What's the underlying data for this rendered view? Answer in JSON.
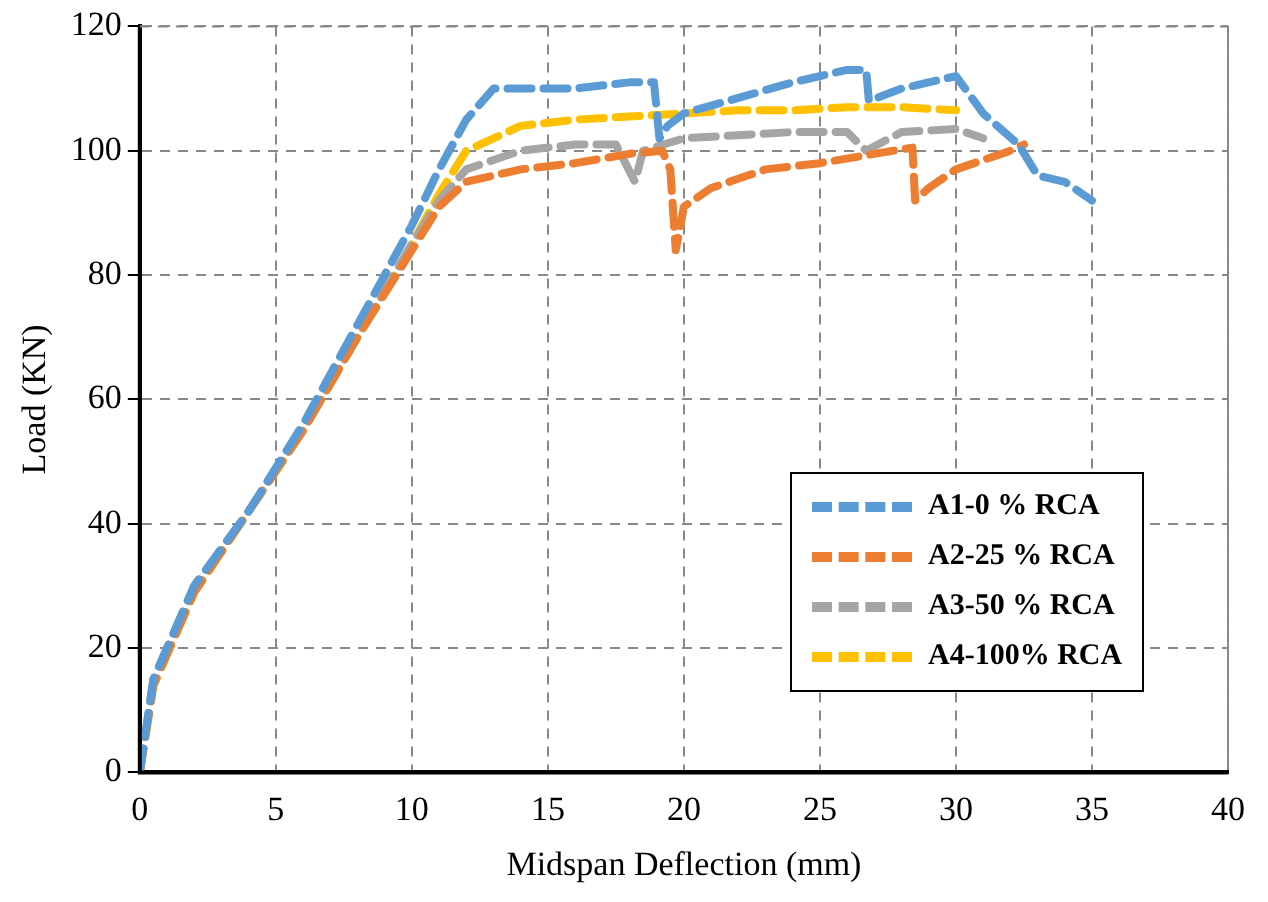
{
  "chart_data": {
    "type": "line",
    "xlabel": "Midspan Deflection (mm)",
    "ylabel": "Load (KN)",
    "xlim": [
      0,
      40
    ],
    "xticks": [
      0,
      5,
      10,
      15,
      20,
      25,
      30,
      35,
      40
    ],
    "ylim": [
      0,
      120
    ],
    "yticks": [
      0,
      20,
      40,
      60,
      80,
      100,
      120
    ],
    "grid": true,
    "legend": "bottom right",
    "marker": "none",
    "line_style": "dashed",
    "series": [
      {
        "name": "A1-0 % RCA",
        "color": "#5b9bd5",
        "x": [
          0,
          0.5,
          2,
          4,
          6,
          8,
          10,
          11,
          12,
          13,
          14,
          16,
          18,
          18.9,
          19.1,
          19.4,
          20,
          22,
          24,
          26,
          26.7,
          26.8,
          28,
          30,
          31,
          32.3,
          33,
          34,
          35
        ],
        "values": [
          0,
          15,
          30,
          42,
          56,
          72,
          88,
          97,
          105,
          110,
          110,
          110,
          111,
          111,
          102,
          104,
          106,
          108.5,
          111,
          113,
          113,
          108,
          110,
          112,
          106,
          101,
          96,
          95,
          92
        ]
      },
      {
        "name": "A2-25 % RCA",
        "color": "#ed7d31",
        "x": [
          0,
          0.5,
          2,
          4,
          6,
          8,
          10,
          11,
          12,
          14,
          16,
          18,
          19.2,
          19.5,
          19.7,
          20,
          21,
          23,
          25,
          27,
          28.4,
          28.5,
          29,
          30,
          32,
          32.5
        ],
        "values": [
          0,
          14,
          29,
          42,
          55,
          70,
          84,
          91,
          95,
          97,
          98,
          99.5,
          100,
          97,
          84,
          91,
          94,
          97,
          98,
          99.5,
          100.5,
          92,
          94,
          97,
          100,
          101
        ]
      },
      {
        "name": "A3-50 % RCA",
        "color": "#a5a5a5",
        "x": [
          0,
          0.5,
          2,
          4,
          6,
          8,
          10,
          11,
          12,
          14,
          16,
          17.5,
          18.2,
          18.5,
          20,
          22,
          24,
          26,
          26.7,
          28,
          30,
          31
        ],
        "values": [
          0,
          15,
          30,
          42,
          55,
          70,
          85,
          92,
          97,
          100,
          101,
          101,
          95,
          100,
          102,
          102.5,
          103,
          103,
          100,
          103,
          103.5,
          102
        ]
      },
      {
        "name": "A4-100% RCA",
        "color": "#ffc000",
        "x": [
          0,
          0.5,
          2,
          4,
          6,
          8,
          10,
          11,
          12,
          14,
          16,
          18,
          20,
          22,
          24,
          26,
          28,
          30
        ],
        "values": [
          0,
          14,
          29,
          42,
          55,
          70,
          85,
          93,
          100,
          104,
          105,
          105.5,
          106,
          106.5,
          106.5,
          107,
          107,
          106.5
        ]
      }
    ]
  }
}
